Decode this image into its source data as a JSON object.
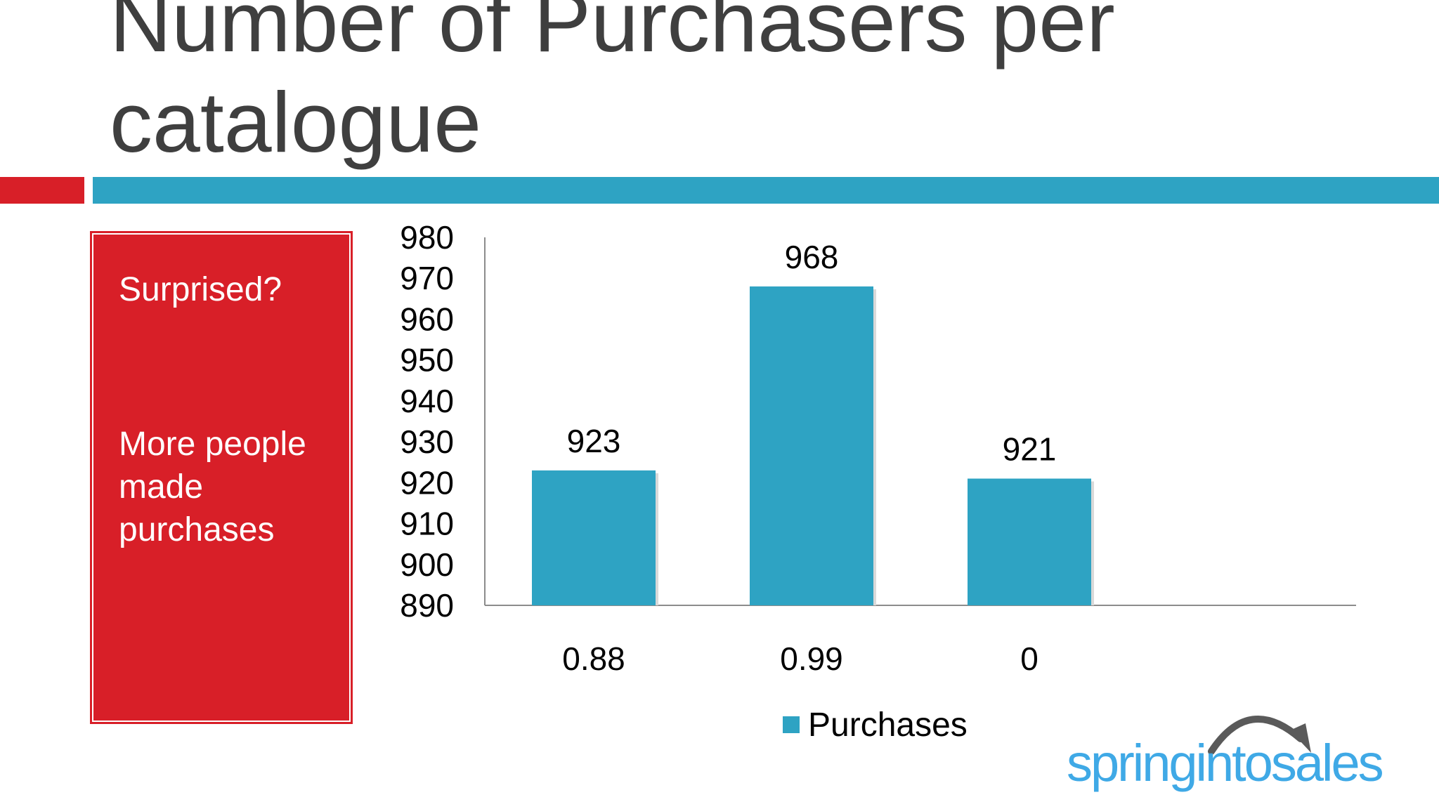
{
  "slide": {
    "title_line1": "Number of Purchasers per",
    "title_line2": "catalogue",
    "side_panel": {
      "line1": "Surprised?",
      "line2": "More people made purchases"
    },
    "logo": {
      "text": "springintosales"
    }
  },
  "colors": {
    "accent_red": "#d81f28",
    "accent_blue": "#2ea3c3",
    "title": "#3f3f3f",
    "logo_blue": "#3fa9e6",
    "logo_arrow": "#5a5a5a"
  },
  "chart_data": {
    "type": "bar",
    "categories": [
      "0.88",
      "0.99",
      "0"
    ],
    "series": [
      {
        "name": "Purchases",
        "values": [
          923,
          968,
          921
        ]
      }
    ],
    "ylim": [
      890,
      980
    ],
    "yticks": [
      980,
      970,
      960,
      950,
      940,
      930,
      920,
      910,
      900,
      890
    ],
    "data_labels": [
      "923",
      "968",
      "921"
    ],
    "legend_position": "bottom",
    "grid": false,
    "title": "",
    "xlabel": "",
    "ylabel": ""
  }
}
